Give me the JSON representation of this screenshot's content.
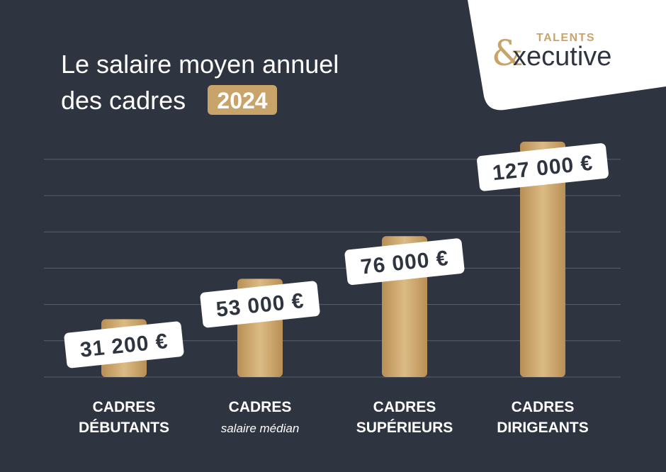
{
  "chart_data": {
    "type": "bar",
    "title": [
      "Le salaire moyen annuel",
      "des cadres"
    ],
    "badge": "2024",
    "logo": {
      "tagline": "TALENTS",
      "ampersand": "&",
      "word": "xecutive"
    },
    "categories": [
      [
        "CADRES",
        "DÉBUTANTS"
      ],
      [
        "CADRES",
        "salaire médian"
      ],
      [
        "CADRES",
        "SUPÉRIEURS"
      ],
      [
        "CADRES",
        "DIRIGEANTS"
      ]
    ],
    "values": [
      31200,
      53000,
      76000,
      127000
    ],
    "value_labels": [
      "31 200 €",
      "53 000 €",
      "76 000 €",
      "127 000 €"
    ],
    "color": "#c9a46a",
    "ylim": [
      0,
      130000
    ],
    "grid": true
  }
}
